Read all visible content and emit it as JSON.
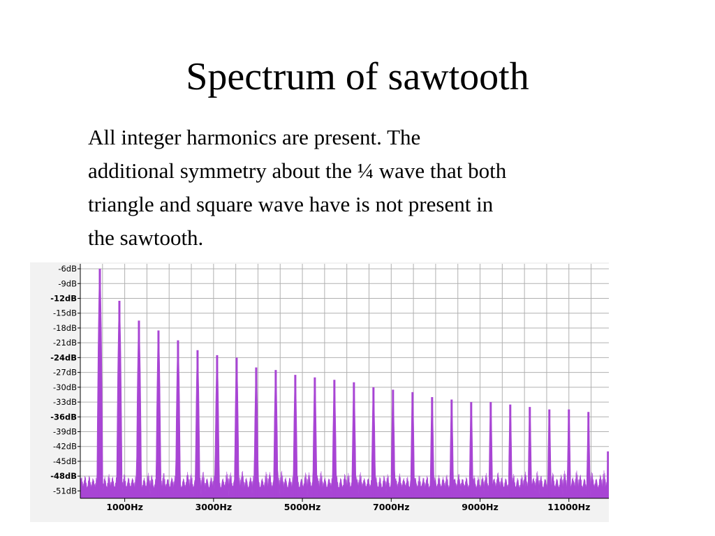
{
  "slide": {
    "title": "Spectrum of sawtooth",
    "body_lines": [
      "All integer harmonics are present.  The",
      "additional symmetry about the ¼ wave that both",
      "triangle and square wave have is not present in",
      "the sawtooth."
    ]
  },
  "chart_data": {
    "type": "area",
    "title": "",
    "xlabel": "",
    "ylabel": "",
    "x_unit": "Hz",
    "y_unit": "dB",
    "ylim": [
      -52.5,
      -5
    ],
    "xlim": [
      0,
      11900
    ],
    "y_ticks": [
      "-6dB",
      "-9dB",
      "-12dB",
      "-15dB",
      "-18dB",
      "-21dB",
      "-24dB",
      "-27dB",
      "-30dB",
      "-33dB",
      "-36dB",
      "-39dB",
      "-42dB",
      "-45dB",
      "-48dB",
      "-51dB"
    ],
    "x_ticks": [
      "1000Hz",
      "3000Hz",
      "5000Hz",
      "7000Hz",
      "9000Hz",
      "11000Hz"
    ],
    "grid": true,
    "fill_color": "#a845d4",
    "grid_color": "#b0b0b0",
    "series": [
      {
        "fundamental_hz": 440,
        "noise_floor_db": -49.5,
        "harmonics": [
          {
            "x": 440,
            "y": -6
          },
          {
            "x": 880,
            "y": -12.5
          },
          {
            "x": 1320,
            "y": -16.5
          },
          {
            "x": 1760,
            "y": -18.5
          },
          {
            "x": 2200,
            "y": -20.5
          },
          {
            "x": 2640,
            "y": -22.5
          },
          {
            "x": 3080,
            "y": -23.5
          },
          {
            "x": 3520,
            "y": -24
          },
          {
            "x": 3960,
            "y": -26
          },
          {
            "x": 4400,
            "y": -26.5
          },
          {
            "x": 4840,
            "y": -27.5
          },
          {
            "x": 5280,
            "y": -28
          },
          {
            "x": 5720,
            "y": -28.5
          },
          {
            "x": 6160,
            "y": -29
          },
          {
            "x": 6600,
            "y": -30
          },
          {
            "x": 7040,
            "y": -30.5
          },
          {
            "x": 7480,
            "y": -31
          },
          {
            "x": 7920,
            "y": -32
          },
          {
            "x": 8360,
            "y": -32.5
          },
          {
            "x": 8800,
            "y": -33
          },
          {
            "x": 9240,
            "y": -33
          },
          {
            "x": 9680,
            "y": -33.5
          },
          {
            "x": 10120,
            "y": -34
          },
          {
            "x": 10560,
            "y": -34.5
          },
          {
            "x": 11000,
            "y": -34.5
          },
          {
            "x": 11440,
            "y": -35
          },
          {
            "x": 11880,
            "y": -43
          }
        ]
      }
    ]
  }
}
